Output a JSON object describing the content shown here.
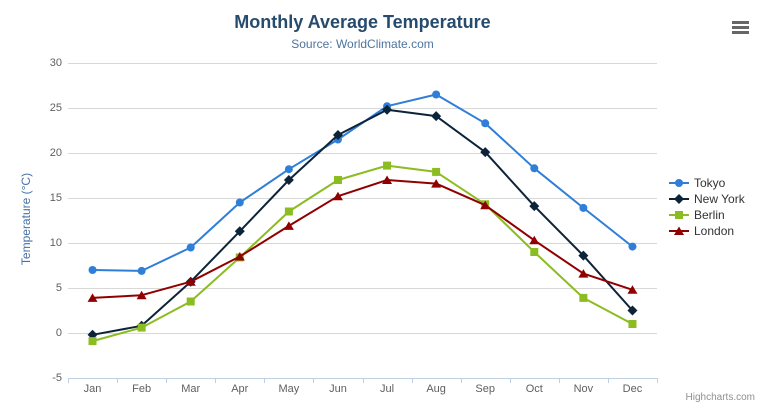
{
  "icons": {
    "context_button": "hamburger-icon"
  },
  "chart_data": {
    "type": "line",
    "title": "Monthly Average Temperature",
    "subtitle": "Source: WorldClimate.com",
    "categories": [
      "Jan",
      "Feb",
      "Mar",
      "Apr",
      "May",
      "Jun",
      "Jul",
      "Aug",
      "Sep",
      "Oct",
      "Nov",
      "Dec"
    ],
    "xlabel": "",
    "ylabel": "Temperature (°C)",
    "ylim": [
      -5,
      30
    ],
    "yticks": [
      -5,
      0,
      5,
      10,
      15,
      20,
      25,
      30
    ],
    "grid": true,
    "legend_position": "right",
    "colors": {
      "grid": "#d8d8d8",
      "axis_line": "#c0d0e0",
      "tick_label": "#606060",
      "title": "#274b6d",
      "subtitle": "#4d759e",
      "yaxis_title": "#4572a7",
      "legend_text": "#333333"
    },
    "series": [
      {
        "name": "Tokyo",
        "color": "#2f7ed8",
        "marker": "circle",
        "values": [
          7.0,
          6.9,
          9.5,
          14.5,
          18.2,
          21.5,
          25.2,
          26.5,
          23.3,
          18.3,
          13.9,
          9.6
        ]
      },
      {
        "name": "New York",
        "color": "#0d233a",
        "marker": "diamond",
        "values": [
          -0.2,
          0.8,
          5.7,
          11.3,
          17.0,
          22.0,
          24.8,
          24.1,
          20.1,
          14.1,
          8.6,
          2.5
        ]
      },
      {
        "name": "Berlin",
        "color": "#8bbc21",
        "marker": "square",
        "values": [
          -0.9,
          0.6,
          3.5,
          8.4,
          13.5,
          17.0,
          18.6,
          17.9,
          14.3,
          9.0,
          3.9,
          1.0
        ]
      },
      {
        "name": "London",
        "color": "#910000",
        "marker": "triangle",
        "values": [
          3.9,
          4.2,
          5.7,
          8.5,
          11.9,
          15.2,
          17.0,
          16.6,
          14.2,
          10.3,
          6.6,
          4.8
        ]
      }
    ],
    "credits": "Highcharts.com"
  }
}
